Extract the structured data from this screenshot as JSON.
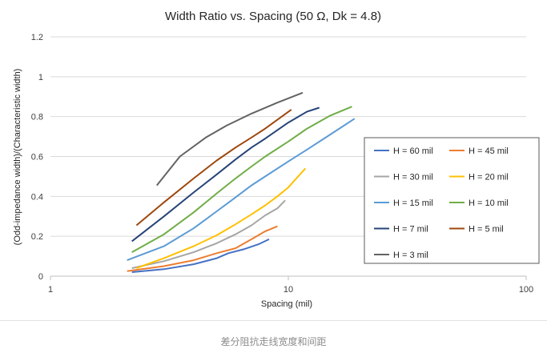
{
  "chart_data": {
    "type": "line",
    "title": "Width Ratio vs. Spacing (50 Ω, Dk = 4.8)",
    "xlabel": "Spacing (mil)",
    "ylabel": "(Odd-impedance width)/(Characteristic width)",
    "xscale": "log",
    "xlim": [
      1,
      100
    ],
    "ylim": [
      0,
      1.2
    ],
    "x_ticks": [
      "1",
      "10",
      "100"
    ],
    "y_ticks": [
      "0",
      "0.2",
      "0.4",
      "0.6",
      "0.8",
      "1",
      "1.2"
    ],
    "grid": "horizontal major",
    "legend_position": "right",
    "series": [
      {
        "name": "H = 60 mil",
        "color": "#4472c4",
        "x": [
          2.2,
          3,
          4,
          5,
          5.6,
          6.5,
          7.5,
          8.3
        ],
        "y": [
          0.02,
          0.035,
          0.06,
          0.09,
          0.115,
          0.135,
          0.16,
          0.185
        ]
      },
      {
        "name": "H = 45 mil",
        "color": "#ed7d31",
        "x": [
          2.1,
          3,
          4,
          5,
          6,
          7,
          8,
          9
        ],
        "y": [
          0.025,
          0.05,
          0.08,
          0.115,
          0.14,
          0.185,
          0.225,
          0.25
        ]
      },
      {
        "name": "H = 30 mil",
        "color": "#a5a5a5",
        "x": [
          2.2,
          3,
          4,
          5,
          6,
          7,
          8,
          9,
          9.7
        ],
        "y": [
          0.04,
          0.075,
          0.12,
          0.165,
          0.21,
          0.255,
          0.305,
          0.34,
          0.38
        ]
      },
      {
        "name": "H = 20 mil",
        "color": "#ffc000",
        "x": [
          2.3,
          3,
          4,
          5,
          6,
          7,
          8,
          9,
          10,
          11.8
        ],
        "y": [
          0.04,
          0.09,
          0.15,
          0.205,
          0.26,
          0.31,
          0.355,
          0.4,
          0.445,
          0.54
        ]
      },
      {
        "name": "H = 15 mil",
        "color": "#5b9bd5",
        "x": [
          2.1,
          3,
          4,
          5,
          6,
          7,
          8,
          10,
          12,
          15,
          19
        ],
        "y": [
          0.08,
          0.15,
          0.24,
          0.325,
          0.395,
          0.455,
          0.5,
          0.575,
          0.635,
          0.71,
          0.79
        ]
      },
      {
        "name": "H = 10 mil",
        "color": "#70ad47",
        "x": [
          2.2,
          3,
          4,
          5,
          6,
          7,
          8,
          10,
          12,
          15,
          18.5
        ],
        "y": [
          0.12,
          0.21,
          0.32,
          0.415,
          0.49,
          0.55,
          0.6,
          0.675,
          0.74,
          0.805,
          0.85
        ]
      },
      {
        "name": "H = 7 mil",
        "color": "#264478",
        "x": [
          2.2,
          3,
          4,
          5,
          6,
          7,
          8,
          10,
          12,
          13.5
        ],
        "y": [
          0.175,
          0.3,
          0.42,
          0.51,
          0.585,
          0.645,
          0.69,
          0.77,
          0.825,
          0.845
        ]
      },
      {
        "name": "H = 5 mil",
        "color": "#9e480e",
        "x": [
          2.3,
          3,
          4,
          5,
          6,
          7,
          8,
          10.3
        ],
        "y": [
          0.255,
          0.37,
          0.49,
          0.58,
          0.645,
          0.695,
          0.74,
          0.835
        ]
      },
      {
        "name": "H = 3 mil",
        "color": "#636363",
        "x": [
          2.8,
          3.5,
          4.5,
          5.5,
          7,
          9,
          11.5
        ],
        "y": [
          0.455,
          0.6,
          0.695,
          0.755,
          0.815,
          0.87,
          0.92
        ]
      }
    ]
  },
  "caption": "差分阻抗走线宽度和间距"
}
